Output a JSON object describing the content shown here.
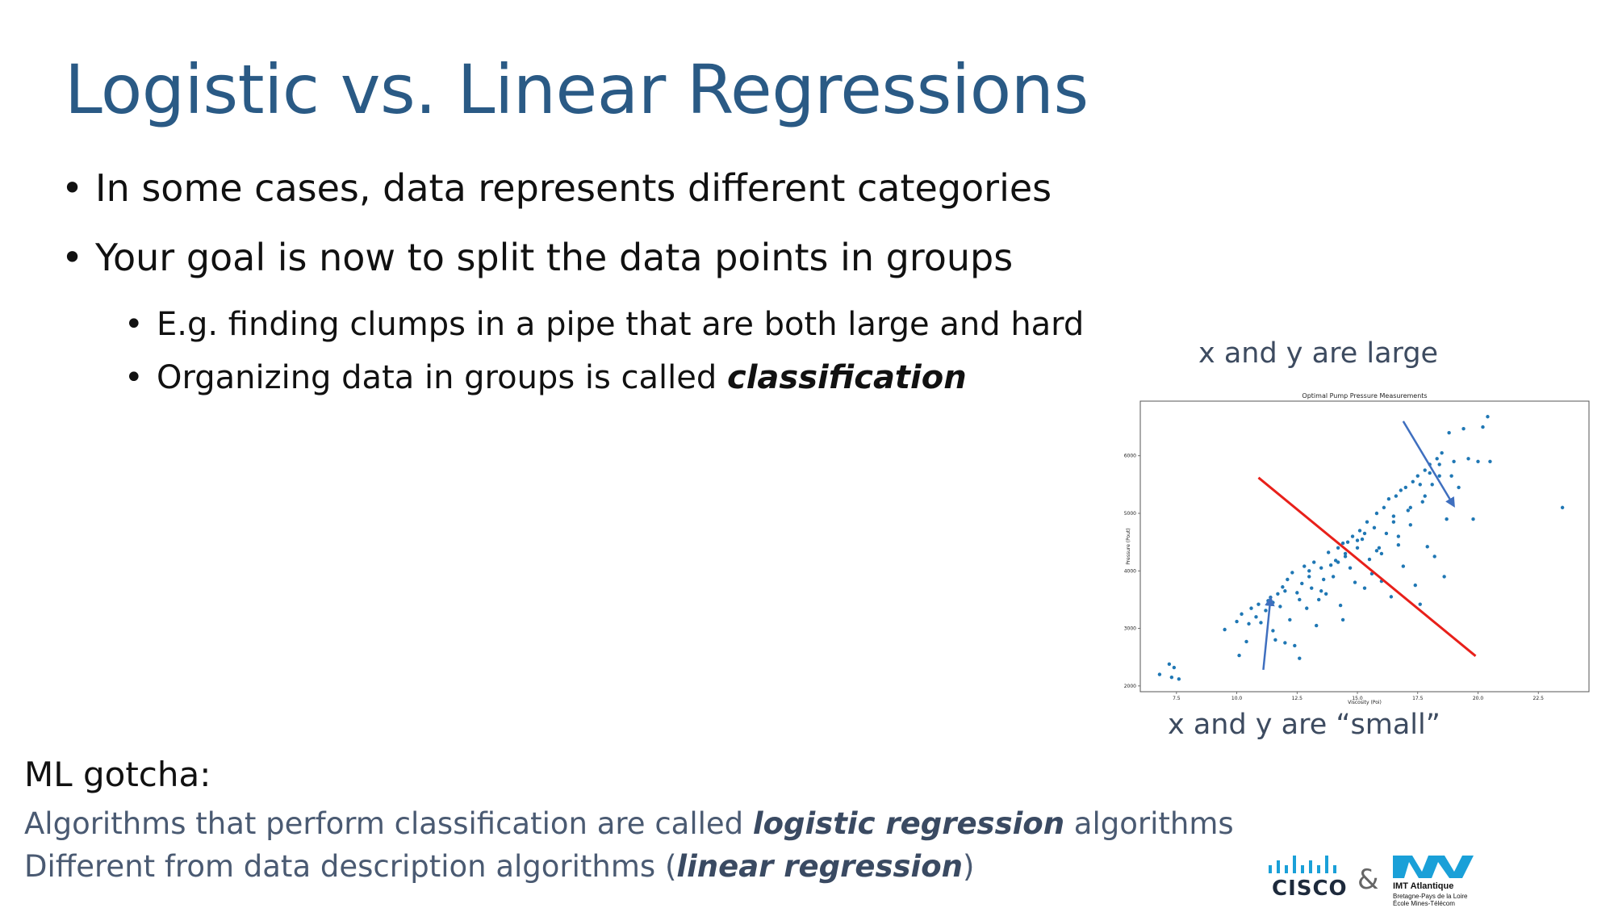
{
  "slide": {
    "title": "Logistic vs. Linear Regressions",
    "bullets": [
      "In some cases, data represents different categories",
      "Your goal is now to split the data points in groups"
    ],
    "sub_bullets": [
      "E.g. finding clumps in a pipe that are both large and hard",
      "Organizing data in groups is called "
    ],
    "sub_bullet_emphasis": "classification"
  },
  "annotations": {
    "large": "x and y are large",
    "small": "x and y are “small”"
  },
  "gotcha": {
    "heading": "ML gotcha:",
    "line1_pre": "Algorithms that perform classification are called ",
    "line1_emph": "logistic regression",
    "line1_post": " algorithms",
    "line2_pre": "Different from data description algorithms (",
    "line2_emph": "linear regression",
    "line2_post": ")"
  },
  "logos": {
    "cisco": "CISCO",
    "ampersand": "&",
    "imt_name": "IMT Atlantique",
    "imt_line2": "Bretagne-Pays de la Loire",
    "imt_line3": "École Mines-Télécom"
  },
  "colors": {
    "title": "#2a5a85",
    "points": "#1f77b4",
    "separator": "#e8201a",
    "arrow": "#3f6fbf",
    "imt_blue": "#1aa0d8"
  },
  "chart_data": {
    "type": "scatter",
    "title": "Optimal Pump Pressure Measurements",
    "xlabel": "Viscosity (Poi)",
    "ylabel": "Pressure (Pout)",
    "xlim": [
      6,
      24.6
    ],
    "ylim": [
      1900,
      6950
    ],
    "x_ticks": [
      7.5,
      10.0,
      12.5,
      15.0,
      17.5,
      20.0,
      22.5
    ],
    "x_tick_labels": [
      "7.5",
      "10.0",
      "12.5",
      "15.0",
      "17.5",
      "20.0",
      "22.5"
    ],
    "y_ticks": [
      2000,
      3000,
      4000,
      5000,
      6000
    ],
    "y_tick_labels": [
      "2000",
      "3000",
      "4000",
      "5000",
      "6000"
    ],
    "separator_line": {
      "x": [
        10.9,
        19.9
      ],
      "y": [
        5620,
        2520
      ]
    },
    "arrow_large": {
      "from": [
        16.9,
        6600
      ],
      "to": [
        19.0,
        5130
      ]
    },
    "arrow_small": {
      "from": [
        11.1,
        2280
      ],
      "to": [
        11.4,
        3530
      ]
    },
    "points": [
      [
        6.8,
        2200
      ],
      [
        7.2,
        2380
      ],
      [
        7.3,
        2150
      ],
      [
        7.4,
        2320
      ],
      [
        7.6,
        2120
      ],
      [
        9.5,
        2980
      ],
      [
        10.0,
        3120
      ],
      [
        10.1,
        2530
      ],
      [
        10.2,
        3250
      ],
      [
        10.4,
        2770
      ],
      [
        10.5,
        3080
      ],
      [
        10.6,
        3350
      ],
      [
        10.8,
        3200
      ],
      [
        10.9,
        3420
      ],
      [
        11.0,
        3100
      ],
      [
        11.2,
        3310
      ],
      [
        11.3,
        3480
      ],
      [
        11.4,
        3540
      ],
      [
        11.5,
        2960
      ],
      [
        11.6,
        2800
      ],
      [
        11.7,
        3600
      ],
      [
        11.8,
        3380
      ],
      [
        11.9,
        3720
      ],
      [
        12.0,
        2750
      ],
      [
        12.1,
        3850
      ],
      [
        12.2,
        3150
      ],
      [
        12.3,
        3970
      ],
      [
        12.4,
        2700
      ],
      [
        12.5,
        3620
      ],
      [
        12.6,
        2480
      ],
      [
        12.7,
        3780
      ],
      [
        12.8,
        4080
      ],
      [
        12.9,
        3350
      ],
      [
        13.0,
        3900
      ],
      [
        13.1,
        3700
      ],
      [
        13.2,
        4150
      ],
      [
        13.3,
        3050
      ],
      [
        13.4,
        3500
      ],
      [
        13.5,
        4050
      ],
      [
        13.6,
        3850
      ],
      [
        13.7,
        3600
      ],
      [
        13.8,
        4320
      ],
      [
        13.9,
        4100
      ],
      [
        14.0,
        3900
      ],
      [
        14.1,
        4180
      ],
      [
        14.2,
        4400
      ],
      [
        14.3,
        3400
      ],
      [
        14.4,
        3150
      ],
      [
        14.5,
        4250
      ],
      [
        14.6,
        4500
      ],
      [
        14.7,
        4050
      ],
      [
        14.8,
        4600
      ],
      [
        14.9,
        3800
      ],
      [
        15.0,
        4400
      ],
      [
        15.1,
        4700
      ],
      [
        15.2,
        4550
      ],
      [
        15.3,
        3700
      ],
      [
        15.4,
        4850
      ],
      [
        15.5,
        4200
      ],
      [
        15.6,
        3950
      ],
      [
        15.7,
        4750
      ],
      [
        15.8,
        5000
      ],
      [
        15.9,
        4400
      ],
      [
        16.0,
        3820
      ],
      [
        16.1,
        5100
      ],
      [
        16.2,
        4650
      ],
      [
        16.3,
        5250
      ],
      [
        16.4,
        3550
      ],
      [
        16.5,
        4950
      ],
      [
        16.6,
        5300
      ],
      [
        16.7,
        4450
      ],
      [
        16.8,
        5400
      ],
      [
        16.9,
        4080
      ],
      [
        17.0,
        5450
      ],
      [
        17.1,
        5050
      ],
      [
        17.2,
        4800
      ],
      [
        17.3,
        5550
      ],
      [
        17.4,
        3750
      ],
      [
        17.5,
        5650
      ],
      [
        17.6,
        3420
      ],
      [
        17.7,
        5200
      ],
      [
        17.8,
        5750
      ],
      [
        17.9,
        4420
      ],
      [
        18.0,
        5850
      ],
      [
        18.1,
        5500
      ],
      [
        18.2,
        4250
      ],
      [
        18.3,
        5950
      ],
      [
        18.4,
        5650
      ],
      [
        18.5,
        6050
      ],
      [
        18.6,
        3900
      ],
      [
        18.7,
        4900
      ],
      [
        18.8,
        6400
      ],
      [
        19.0,
        5900
      ],
      [
        19.2,
        5450
      ],
      [
        19.4,
        6470
      ],
      [
        19.6,
        5950
      ],
      [
        19.8,
        4900
      ],
      [
        20.0,
        5900
      ],
      [
        20.2,
        6500
      ],
      [
        20.4,
        6680
      ],
      [
        20.5,
        5900
      ],
      [
        23.5,
        5100
      ],
      [
        14.4,
        4480
      ],
      [
        15.0,
        4530
      ],
      [
        16.0,
        4300
      ],
      [
        16.7,
        4600
      ],
      [
        17.2,
        5100
      ],
      [
        17.6,
        5500
      ],
      [
        18.0,
        5700
      ],
      [
        18.4,
        5850
      ],
      [
        13.5,
        3650
      ],
      [
        12.6,
        3500
      ],
      [
        11.5,
        3450
      ],
      [
        14.5,
        4300
      ],
      [
        15.3,
        4650
      ],
      [
        16.5,
        4850
      ],
      [
        17.8,
        5300
      ],
      [
        13.0,
        4000
      ],
      [
        12.0,
        3650
      ],
      [
        14.2,
        4150
      ],
      [
        18.9,
        5650
      ],
      [
        15.8,
        4350
      ]
    ]
  }
}
